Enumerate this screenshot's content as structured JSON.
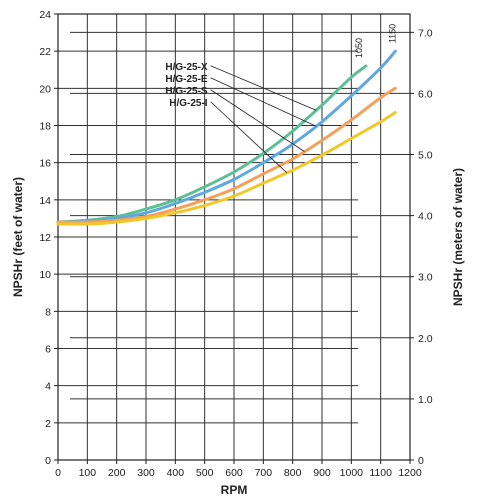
{
  "chart_data": {
    "type": "line",
    "xlabel": "RPM",
    "ylabel": "NPSHr (feet of water)",
    "y2label": "NPSHr (meters of water)",
    "xlim": [
      0,
      1200
    ],
    "ylim": [
      0,
      24
    ],
    "y2lim": [
      0,
      7.3
    ],
    "x_ticks": [
      "0",
      "100",
      "200",
      "300",
      "400",
      "500",
      "600",
      "700",
      "800",
      "900",
      "1000",
      "1100",
      "1200"
    ],
    "y_ticks": [
      "0",
      "2",
      "4",
      "6",
      "8",
      "10",
      "12",
      "14",
      "16",
      "18",
      "20",
      "22",
      "24"
    ],
    "y2_ticks": [
      "0",
      "1.0",
      "2.0",
      "3.0",
      "4.0",
      "5.0",
      "6.0",
      "7.0"
    ],
    "grid": true,
    "series": [
      {
        "name": "H/G-25-X",
        "color": "#5cbf95",
        "x": [
          0,
          100,
          200,
          300,
          400,
          500,
          600,
          700,
          800,
          900,
          1000,
          1050
        ],
        "y": [
          12.8,
          12.9,
          13.1,
          13.5,
          14.0,
          14.7,
          15.5,
          16.5,
          17.7,
          19.1,
          20.6,
          21.2
        ]
      },
      {
        "name": "H/G-25-E",
        "color": "#5fa8e0",
        "x": [
          0,
          100,
          200,
          300,
          400,
          500,
          600,
          700,
          800,
          900,
          1000,
          1100,
          1150
        ],
        "y": [
          12.8,
          12.85,
          13.0,
          13.3,
          13.8,
          14.4,
          15.1,
          16.0,
          17.0,
          18.2,
          19.6,
          21.1,
          22.0
        ]
      },
      {
        "name": "H/G-25-S",
        "color": "#f4a05a",
        "x": [
          0,
          100,
          200,
          300,
          400,
          500,
          600,
          700,
          800,
          900,
          1000,
          1100,
          1150
        ],
        "y": [
          12.8,
          12.8,
          12.9,
          13.1,
          13.5,
          14.0,
          14.6,
          15.4,
          16.2,
          17.2,
          18.3,
          19.5,
          20.0
        ]
      },
      {
        "name": "H/G-25-I",
        "color": "#f0c828",
        "x": [
          0,
          100,
          200,
          300,
          400,
          500,
          600,
          700,
          800,
          900,
          1000,
          1100,
          1150
        ],
        "y": [
          12.7,
          12.7,
          12.8,
          13.0,
          13.3,
          13.7,
          14.2,
          14.9,
          15.6,
          16.4,
          17.3,
          18.2,
          18.7
        ]
      }
    ],
    "annotations": [
      {
        "text": "1050",
        "x": 1050,
        "y": 21.2
      },
      {
        "text": "1150",
        "x": 1150,
        "y": 22.0
      }
    ],
    "legend": [
      {
        "text": "H/G-25-X",
        "series": 0
      },
      {
        "text": "H/G-25-E",
        "series": 1
      },
      {
        "text": "H/G-25-S",
        "series": 2
      },
      {
        "text": "H/G-25-I",
        "series": 3
      }
    ]
  }
}
